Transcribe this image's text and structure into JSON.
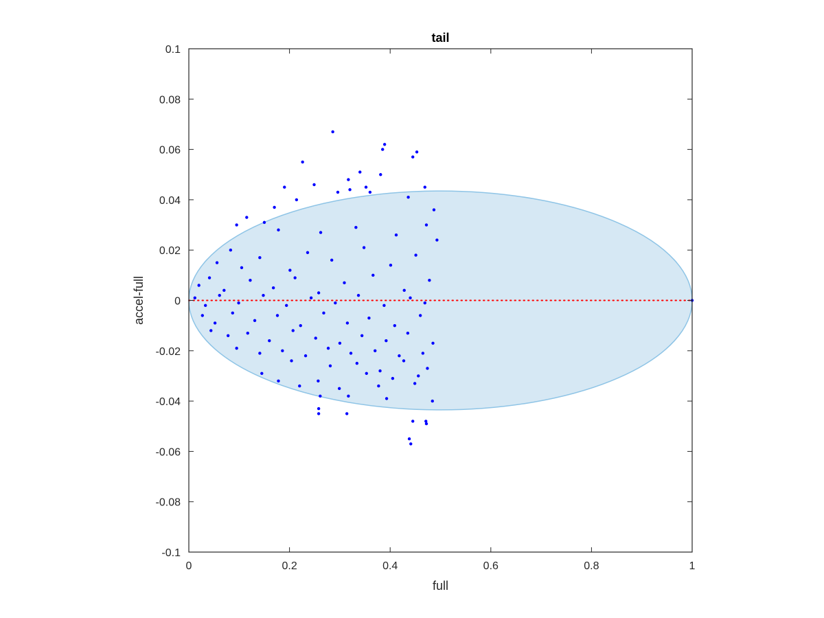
{
  "chart_data": {
    "type": "scatter",
    "title": "tail",
    "xlabel": "full",
    "ylabel": "accel-full",
    "xlim": [
      0,
      1
    ],
    "ylim": [
      -0.1,
      0.1
    ],
    "xticks": [
      0,
      0.2,
      0.4,
      0.6,
      0.8,
      1
    ],
    "xtick_labels": [
      "0",
      "0.2",
      "0.4",
      "0.6",
      "0.8",
      "1"
    ],
    "yticks": [
      -0.1,
      -0.08,
      -0.06,
      -0.04,
      -0.02,
      0,
      0.02,
      0.04,
      0.06,
      0.08,
      0.1
    ],
    "ytick_labels": [
      "-0.1",
      "-0.08",
      "-0.06",
      "-0.04",
      "-0.02",
      "0",
      "0.02",
      "0.04",
      "0.06",
      "0.08",
      "0.1"
    ],
    "grid": false,
    "box": true,
    "colors": {
      "points": "#0000ff",
      "ellipse_fill": "#d6e8f4",
      "ellipse_edge": "#8ec4e6",
      "reference_line": "#ff0000",
      "axes": "#262626"
    },
    "ellipse": {
      "cx": 0.5,
      "cy": 0,
      "rx": 0.5,
      "ry": 0.0435
    },
    "reference_line": {
      "y": 0,
      "style": "dotted"
    },
    "series": [
      {
        "points": [
          [
            0.286,
            0.067
          ],
          [
            0.389,
            0.062
          ],
          [
            0.385,
            0.06
          ],
          [
            0.453,
            0.059
          ],
          [
            0.445,
            0.057
          ],
          [
            0.226,
            0.055
          ],
          [
            0.34,
            0.051
          ],
          [
            0.381,
            0.05
          ],
          [
            0.317,
            0.048
          ],
          [
            0.249,
            0.046
          ],
          [
            0.19,
            0.045
          ],
          [
            0.352,
            0.045
          ],
          [
            0.469,
            0.045
          ],
          [
            0.32,
            0.044
          ],
          [
            0.296,
            0.043
          ],
          [
            0.36,
            0.043
          ],
          [
            0.214,
            0.04
          ],
          [
            0.17,
            0.037
          ],
          [
            0.487,
            0.036
          ],
          [
            0.436,
            0.041
          ],
          [
            0.115,
            0.033
          ],
          [
            0.15,
            0.031
          ],
          [
            0.095,
            0.03
          ],
          [
            0.178,
            0.028
          ],
          [
            0.262,
            0.027
          ],
          [
            0.332,
            0.029
          ],
          [
            0.412,
            0.026
          ],
          [
            0.472,
            0.03
          ],
          [
            0.493,
            0.024
          ],
          [
            0.056,
            0.015
          ],
          [
            0.083,
            0.02
          ],
          [
            0.105,
            0.013
          ],
          [
            0.141,
            0.017
          ],
          [
            0.201,
            0.012
          ],
          [
            0.236,
            0.019
          ],
          [
            0.284,
            0.016
          ],
          [
            0.348,
            0.021
          ],
          [
            0.401,
            0.014
          ],
          [
            0.451,
            0.018
          ],
          [
            0.02,
            0.006
          ],
          [
            0.041,
            0.009
          ],
          [
            0.07,
            0.004
          ],
          [
            0.122,
            0.008
          ],
          [
            0.168,
            0.005
          ],
          [
            0.211,
            0.009
          ],
          [
            0.258,
            0.003
          ],
          [
            0.309,
            0.007
          ],
          [
            0.366,
            0.01
          ],
          [
            0.428,
            0.004
          ],
          [
            0.478,
            0.008
          ],
          [
            0.012,
            0.001
          ],
          [
            0.033,
            -0.002
          ],
          [
            0.061,
            0.002
          ],
          [
            0.099,
            -0.001
          ],
          [
            0.148,
            0.002
          ],
          [
            0.194,
            -0.002
          ],
          [
            0.243,
            0.001
          ],
          [
            0.291,
            -0.001
          ],
          [
            0.337,
            0.002
          ],
          [
            0.388,
            -0.002
          ],
          [
            0.44,
            0.001
          ],
          [
            0.469,
            -0.001
          ],
          [
            0.027,
            -0.006
          ],
          [
            0.052,
            -0.009
          ],
          [
            0.087,
            -0.005
          ],
          [
            0.131,
            -0.008
          ],
          [
            0.176,
            -0.006
          ],
          [
            0.222,
            -0.01
          ],
          [
            0.268,
            -0.005
          ],
          [
            0.315,
            -0.009
          ],
          [
            0.358,
            -0.007
          ],
          [
            0.409,
            -0.01
          ],
          [
            0.46,
            -0.006
          ],
          [
            0.044,
            -0.012
          ],
          [
            0.078,
            -0.014
          ],
          [
            0.117,
            -0.013
          ],
          [
            0.16,
            -0.016
          ],
          [
            0.207,
            -0.012
          ],
          [
            0.252,
            -0.015
          ],
          [
            0.3,
            -0.017
          ],
          [
            0.344,
            -0.014
          ],
          [
            0.392,
            -0.016
          ],
          [
            0.435,
            -0.013
          ],
          [
            0.485,
            -0.017
          ],
          [
            0.095,
            -0.019
          ],
          [
            0.141,
            -0.021
          ],
          [
            0.186,
            -0.02
          ],
          [
            0.232,
            -0.022
          ],
          [
            0.277,
            -0.019
          ],
          [
            0.322,
            -0.021
          ],
          [
            0.37,
            -0.02
          ],
          [
            0.418,
            -0.022
          ],
          [
            0.465,
            -0.021
          ],
          [
            0.204,
            -0.024
          ],
          [
            0.281,
            -0.026
          ],
          [
            0.334,
            -0.025
          ],
          [
            0.38,
            -0.028
          ],
          [
            0.427,
            -0.024
          ],
          [
            0.474,
            -0.027
          ],
          [
            0.145,
            -0.029
          ],
          [
            0.257,
            -0.032
          ],
          [
            0.353,
            -0.029
          ],
          [
            0.405,
            -0.031
          ],
          [
            0.456,
            -0.03
          ],
          [
            0.178,
            -0.032
          ],
          [
            0.22,
            -0.034
          ],
          [
            0.299,
            -0.035
          ],
          [
            0.377,
            -0.034
          ],
          [
            0.449,
            -0.033
          ],
          [
            0.261,
            -0.038
          ],
          [
            0.317,
            -0.038
          ],
          [
            0.393,
            -0.039
          ],
          [
            0.484,
            -0.04
          ],
          [
            0.258,
            -0.043
          ],
          [
            0.258,
            -0.045
          ],
          [
            0.314,
            -0.045
          ],
          [
            0.445,
            -0.048
          ],
          [
            0.471,
            -0.048
          ],
          [
            0.472,
            -0.049
          ],
          [
            0.438,
            -0.055
          ],
          [
            0.441,
            -0.057
          ],
          [
            1.0,
            0.0
          ]
        ]
      }
    ]
  }
}
